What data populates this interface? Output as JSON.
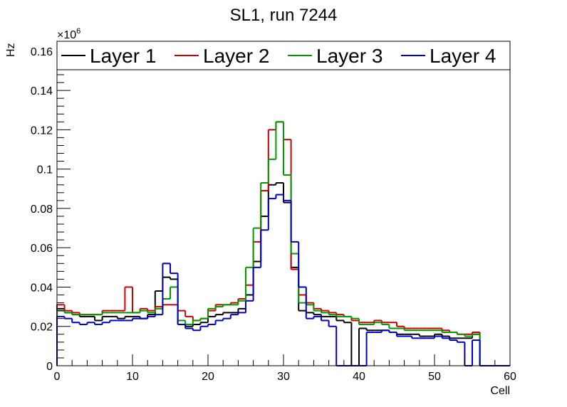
{
  "chart_data": {
    "type": "line",
    "title": "SL1, run 7244",
    "xlabel": "Cell",
    "ylabel": "Hz",
    "y_multiplier": "×10",
    "y_multiplier_exponent": "6",
    "xlim": [
      0,
      60
    ],
    "ylim": [
      0,
      0.165
    ],
    "x_ticks": [
      0,
      10,
      20,
      30,
      40,
      50,
      60
    ],
    "x_tick_labels": [
      "0",
      "10",
      "20",
      "30",
      "40",
      "50",
      "60"
    ],
    "y_ticks": [
      0,
      0.02,
      0.04,
      0.06,
      0.08,
      0.1,
      0.12,
      0.14,
      0.16
    ],
    "y_tick_labels": [
      "0",
      "0.02",
      "0.04",
      "0.06",
      "0.08",
      "0.1",
      "0.12",
      "0.14",
      "0.16"
    ],
    "grid": false,
    "legend_position": "top",
    "bin_edges": [
      0,
      1,
      2,
      3,
      4,
      5,
      6,
      7,
      8,
      9,
      10,
      11,
      12,
      13,
      14,
      15,
      16,
      17,
      18,
      19,
      20,
      21,
      22,
      23,
      24,
      25,
      26,
      27,
      28,
      29,
      30,
      31,
      32,
      33,
      34,
      35,
      36,
      37,
      38,
      39,
      40,
      41,
      42,
      43,
      44,
      45,
      46,
      47,
      48,
      49,
      50,
      51,
      52,
      53,
      54,
      55,
      56,
      57,
      58,
      59,
      60
    ],
    "series": [
      {
        "name": "Layer 1",
        "color": "#000000",
        "values": [
          0.029,
          0.027,
          0.026,
          0.025,
          0.025,
          0.023,
          0.025,
          0.025,
          0.024,
          0.025,
          0.025,
          0.024,
          0.026,
          0.038,
          0.045,
          0.044,
          0.021,
          0.02,
          0.021,
          0.022,
          0.025,
          0.026,
          0.027,
          0.027,
          0.029,
          0.036,
          0.053,
          0.076,
          0.092,
          0.093,
          0.083,
          0.05,
          0.028,
          0.027,
          0.026,
          0.025,
          0.025,
          0.023,
          0.022,
          0.0,
          0.019,
          0.018,
          0.018,
          0.018,
          0.017,
          0.016,
          0.016,
          0.016,
          0.015,
          0.015,
          0.016,
          0.015,
          0.014,
          0.014,
          0.014,
          0.016,
          0,
          0,
          0,
          0
        ]
      },
      {
        "name": "Layer 2",
        "color": "#cc0000",
        "values": [
          0.031,
          0.028,
          0.027,
          0.026,
          0.026,
          0.026,
          0.028,
          0.028,
          0.028,
          0.04,
          0.027,
          0.029,
          0.028,
          0.03,
          0.031,
          0.031,
          0.028,
          0.025,
          0.023,
          0.024,
          0.028,
          0.031,
          0.031,
          0.032,
          0.034,
          0.041,
          0.063,
          0.089,
          0.12,
          0.124,
          0.115,
          0.049,
          0.036,
          0.032,
          0.029,
          0.028,
          0.027,
          0.026,
          0.025,
          0.023,
          0.022,
          0.022,
          0.023,
          0.022,
          0.022,
          0.02,
          0.019,
          0.019,
          0.019,
          0.019,
          0.019,
          0.018,
          0.017,
          0.016,
          0.016,
          0.017,
          0,
          0,
          0,
          0
        ]
      },
      {
        "name": "Layer 3",
        "color": "#009900",
        "values": [
          0.028,
          0.027,
          0.026,
          0.026,
          0.026,
          0.026,
          0.027,
          0.027,
          0.027,
          0.027,
          0.027,
          0.028,
          0.027,
          0.029,
          0.034,
          0.04,
          0.023,
          0.021,
          0.023,
          0.024,
          0.029,
          0.03,
          0.031,
          0.031,
          0.033,
          0.05,
          0.07,
          0.093,
          0.105,
          0.124,
          0.097,
          0.057,
          0.032,
          0.031,
          0.028,
          0.027,
          0.026,
          0.025,
          0.025,
          0.024,
          0.021,
          0.021,
          0.022,
          0.021,
          0.019,
          0.019,
          0.018,
          0.018,
          0.018,
          0.018,
          0.018,
          0.017,
          0.017,
          0.016,
          0.015,
          0.016,
          0,
          0,
          0,
          0
        ]
      },
      {
        "name": "Layer 4",
        "color": "#0000cc",
        "values": [
          0.025,
          0.024,
          0.022,
          0.021,
          0.022,
          0.021,
          0.022,
          0.023,
          0.023,
          0.023,
          0.024,
          0.024,
          0.025,
          0.026,
          0.052,
          0.047,
          0.021,
          0.019,
          0.018,
          0.02,
          0.021,
          0.023,
          0.024,
          0.026,
          0.027,
          0.033,
          0.05,
          0.069,
          0.085,
          0.087,
          0.084,
          0.063,
          0.04,
          0.024,
          0.025,
          0.023,
          0.02,
          0.0,
          0.0,
          0.0,
          0.0,
          0.017,
          0.017,
          0.018,
          0.017,
          0.015,
          0.015,
          0.014,
          0.014,
          0.014,
          0.015,
          0.014,
          0.013,
          0.012,
          0.0,
          0.013,
          0,
          0,
          0,
          0
        ]
      }
    ]
  }
}
